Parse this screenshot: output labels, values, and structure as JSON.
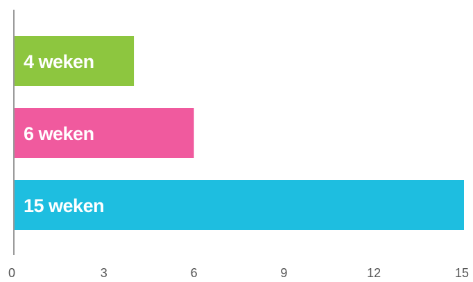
{
  "chart_data": {
    "type": "bar",
    "orientation": "horizontal",
    "categories": [
      "4 weken",
      "6 weken",
      "15 weken"
    ],
    "values": [
      4,
      6,
      15
    ],
    "bar_labels": [
      "4 weken",
      "6 weken",
      "15 weken"
    ],
    "colors": [
      "#8dc63f",
      "#f05a9e",
      "#1ebee0"
    ],
    "xlim": [
      0,
      15
    ],
    "xticks": [
      "0",
      "3",
      "6",
      "9",
      "12",
      "15"
    ],
    "xtick_values": [
      0,
      3,
      6,
      9,
      12,
      15
    ],
    "grid": false,
    "legend": "none",
    "axis_color": "#555555"
  }
}
